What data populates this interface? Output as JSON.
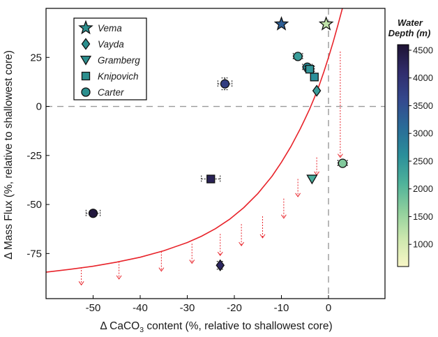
{
  "chart_data": {
    "type": "scatter",
    "xlabel": {
      "pre": "Δ CaCO",
      "sub": "3",
      "post": " content (%, relative to shallowest core)"
    },
    "ylabel": "Δ Mass Flux (%, relative to shallowest core)",
    "xlim": [
      -60,
      12
    ],
    "ylim": [
      -98,
      50
    ],
    "xticks": [
      -50,
      -40,
      -30,
      -20,
      -10,
      0
    ],
    "yticks": [
      25,
      0,
      -25,
      -50,
      -75
    ],
    "reference_lines": {
      "x": 0,
      "y": 0,
      "style": "dashed"
    },
    "legend": {
      "position": "top-left",
      "entries": [
        {
          "label": "Vema",
          "marker": "star"
        },
        {
          "label": "Vayda",
          "marker": "diamond"
        },
        {
          "label": "Gramberg",
          "marker": "triangle-down"
        },
        {
          "label": "Knipovich",
          "marker": "square"
        },
        {
          "label": "Carter",
          "marker": "circle"
        }
      ]
    },
    "colorbar": {
      "title": [
        "Water",
        "Depth (m)"
      ],
      "min": 600,
      "max": 4600,
      "ticks": [
        4500,
        4000,
        3500,
        3000,
        2500,
        2000,
        1500,
        1000
      ],
      "colors": [
        "#f8f6c6",
        "#cde8ae",
        "#8fcf9c",
        "#4fb29a",
        "#2b8f9a",
        "#2a6c98",
        "#34498e",
        "#302c6c",
        "#1e1333"
      ]
    },
    "points": [
      {
        "core": "Vema",
        "marker": "star",
        "x": -10,
        "y": 42,
        "depth": 3300
      },
      {
        "core": "Vema",
        "marker": "star",
        "x": -0.5,
        "y": 42,
        "depth": 1200
      },
      {
        "core": "Carter",
        "marker": "circle",
        "x": -22,
        "y": 11.5,
        "depth": 3800,
        "xerr": 1.5,
        "yerr": 3
      },
      {
        "core": "Carter",
        "marker": "circle",
        "x": -6.5,
        "y": 25.5,
        "depth": 2400,
        "xerr": 1
      },
      {
        "core": "Carter",
        "marker": "circle",
        "x": -4.5,
        "y": 20,
        "depth": 2600,
        "xerr": 1
      },
      {
        "core": "Knipovich",
        "marker": "square",
        "x": -4,
        "y": 19,
        "depth": 2500,
        "xerr": 1
      },
      {
        "core": "Knipovich",
        "marker": "square",
        "x": -3,
        "y": 15,
        "depth": 2600
      },
      {
        "core": "Vayda",
        "marker": "diamond",
        "x": -2.5,
        "y": 8,
        "depth": 2400
      },
      {
        "core": "Knipovich",
        "marker": "square",
        "x": -25,
        "y": -37,
        "depth": 4300,
        "xerr": 2
      },
      {
        "core": "Gramberg",
        "marker": "triangle-down",
        "x": -3.5,
        "y": -37,
        "depth": 2200
      },
      {
        "core": "Carter",
        "marker": "circle",
        "x": 3,
        "y": -29,
        "depth": 1700,
        "xerr": 1
      },
      {
        "core": "Carter",
        "marker": "circle",
        "x": -50,
        "y": -54.5,
        "depth": 4500,
        "xerr": 1.5
      },
      {
        "core": "Vayda",
        "marker": "diamond",
        "x": -23,
        "y": -81,
        "depth": 4200,
        "yerr": 2
      }
    ],
    "model_curve": {
      "color": "#e8232a",
      "x": [
        -60,
        -55,
        -50,
        -45,
        -40,
        -35,
        -30,
        -27,
        -24,
        -21,
        -18,
        -15,
        -12,
        -10,
        -8,
        -6,
        -5,
        -4,
        -3,
        -2,
        -1,
        0,
        1,
        2,
        3,
        3.7
      ],
      "y": [
        -84.5,
        -83.1,
        -81.5,
        -79.4,
        -76.9,
        -73.6,
        -69.4,
        -66.2,
        -62.3,
        -57.5,
        -51.6,
        -44.4,
        -35.6,
        -28.5,
        -20.5,
        -11.4,
        -6.4,
        -1.3,
        4.5,
        10.6,
        17.6,
        25,
        33,
        41.5,
        50.5,
        58
      ]
    },
    "dropdown_arrows": [
      {
        "x": -52.5,
        "y_from": -82,
        "y_to": -91
      },
      {
        "x": -44.5,
        "y_from": -79,
        "y_to": -88
      },
      {
        "x": -35.5,
        "y_from": -74,
        "y_to": -84
      },
      {
        "x": -29,
        "y_from": -70,
        "y_to": -80
      },
      {
        "x": -23,
        "y_from": -65,
        "y_to": -76
      },
      {
        "x": -18.5,
        "y_from": -60,
        "y_to": -71
      },
      {
        "x": -14,
        "y_from": -56,
        "y_to": -67
      },
      {
        "x": -9.5,
        "y_from": -47,
        "y_to": -57
      },
      {
        "x": -6.5,
        "y_from": -37,
        "y_to": -46
      },
      {
        "x": -2.5,
        "y_from": -26,
        "y_to": -35
      },
      {
        "x": 2.5,
        "y_from": 28,
        "y_to": -26
      }
    ]
  }
}
